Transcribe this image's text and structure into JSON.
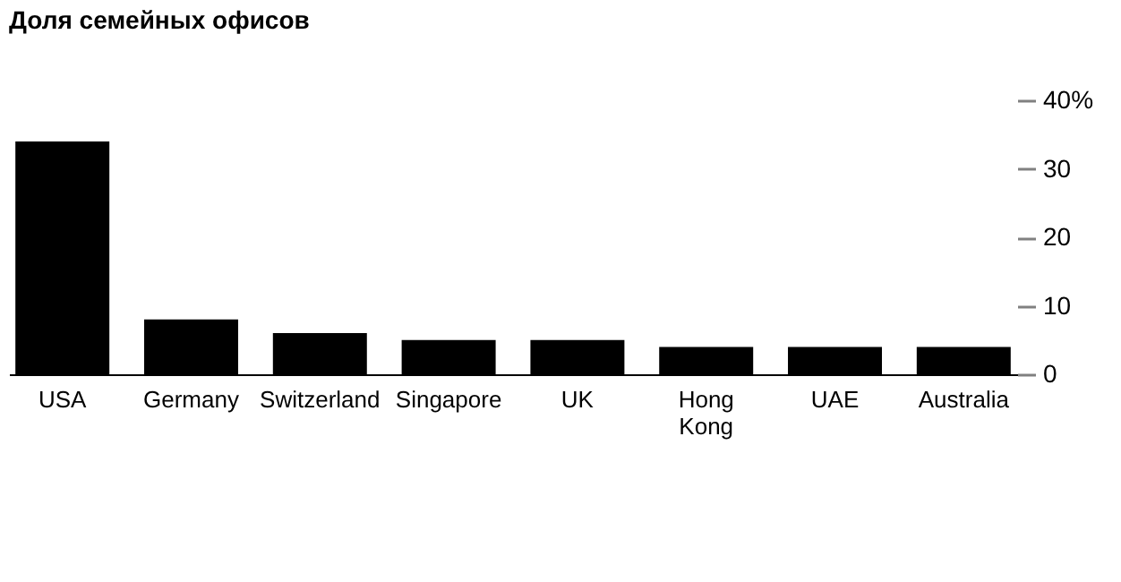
{
  "chart_data": {
    "type": "bar",
    "title": "Доля семейных офисов",
    "categories": [
      "USA",
      "Germany",
      "Switzerland",
      "Singapore",
      "UK",
      "Hong Kong",
      "UAE",
      "Australia"
    ],
    "series": [
      {
        "color": "#000000",
        "values": [
          34,
          8,
          6,
          5,
          5,
          4,
          4,
          4
        ]
      }
    ],
    "ylim": [
      0,
      40
    ],
    "yticks": [
      0,
      10,
      20,
      30,
      {
        "value": 40,
        "label": "40%"
      }
    ],
    "grid": false
  }
}
